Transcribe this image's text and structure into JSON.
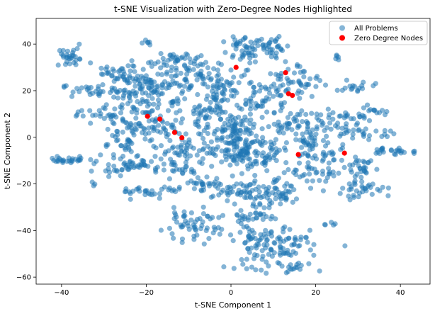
{
  "chart_data": {
    "type": "scatter",
    "title": "t-SNE Visualization with Zero-Degree Nodes Highlighted",
    "xlabel": "t-SNE Component 1",
    "ylabel": "t-SNE Component 2",
    "xlim": [
      -46,
      47
    ],
    "ylim": [
      -63,
      51
    ],
    "xticks": [
      -40,
      -20,
      0,
      20,
      40
    ],
    "yticks": [
      -60,
      -40,
      -20,
      0,
      20,
      40
    ],
    "grid": false,
    "legend_position": "top-right",
    "series": [
      {
        "name": "All Problems",
        "color": "#1f77b4",
        "alpha": 0.55,
        "marker": "circle",
        "note_clusters": [
          {
            "cx": -38,
            "cy": 34,
            "sx": 2.2,
            "sy": 2.0,
            "n": 30
          },
          {
            "cx": -27,
            "cy": 27,
            "sx": 2.0,
            "sy": 1.8,
            "n": 25
          },
          {
            "cx": -32,
            "cy": 20,
            "sx": 4.0,
            "sy": 1.5,
            "n": 30
          },
          {
            "cx": -20,
            "cy": 40,
            "sx": 0.8,
            "sy": 0.8,
            "n": 6
          },
          {
            "cx": -19,
            "cy": 22,
            "sx": 4.5,
            "sy": 5.5,
            "n": 140
          },
          {
            "cx": -13,
            "cy": 33,
            "sx": 3.0,
            "sy": 2.0,
            "n": 35
          },
          {
            "cx": -9,
            "cy": 26,
            "sx": 2.5,
            "sy": 3.0,
            "n": 30
          },
          {
            "cx": -29,
            "cy": 10,
            "sx": 3.0,
            "sy": 2.0,
            "n": 25
          },
          {
            "cx": -25,
            "cy": 4,
            "sx": 2.5,
            "sy": 2.0,
            "n": 20
          },
          {
            "cx": -18,
            "cy": 6,
            "sx": 4.0,
            "sy": 4.0,
            "n": 60
          },
          {
            "cx": -26,
            "cy": -3,
            "sx": 2.5,
            "sy": 2.0,
            "n": 25
          },
          {
            "cx": -40,
            "cy": -10,
            "sx": 2.5,
            "sy": 0.6,
            "n": 18
          },
          {
            "cx": -36,
            "cy": 10,
            "sx": 0.8,
            "sy": 0.8,
            "n": 5
          },
          {
            "cx": -37,
            "cy": -10,
            "sx": 1.5,
            "sy": 1.2,
            "n": 10
          },
          {
            "cx": -24,
            "cy": -12,
            "sx": 4.0,
            "sy": 2.0,
            "n": 55
          },
          {
            "cx": -19,
            "cy": -23,
            "sx": 4.0,
            "sy": 1.2,
            "n": 30
          },
          {
            "cx": -32,
            "cy": -20,
            "sx": 0.5,
            "sy": 0.5,
            "n": 3
          },
          {
            "cx": -11,
            "cy": -5,
            "sx": 3.0,
            "sy": 3.5,
            "n": 45
          },
          {
            "cx": -12,
            "cy": -14,
            "sx": 2.5,
            "sy": 1.5,
            "n": 20
          },
          {
            "cx": -7,
            "cy": -21,
            "sx": 3.0,
            "sy": 2.0,
            "n": 30
          },
          {
            "cx": -10,
            "cy": -38,
            "sx": 3.5,
            "sy": 3.0,
            "n": 55
          },
          {
            "cx": -6,
            "cy": 10,
            "sx": 2.0,
            "sy": 3.0,
            "n": 25
          },
          {
            "cx": -2,
            "cy": 20,
            "sx": 3.5,
            "sy": 5.0,
            "n": 80
          },
          {
            "cx": 3,
            "cy": 38,
            "sx": 2.5,
            "sy": 3.5,
            "n": 45
          },
          {
            "cx": 10,
            "cy": 39,
            "sx": 2.0,
            "sy": 2.5,
            "n": 35
          },
          {
            "cx": 0,
            "cy": 5,
            "sx": 3.5,
            "sy": 4.0,
            "n": 70
          },
          {
            "cx": 2,
            "cy": -5,
            "sx": 4.0,
            "sy": 5.0,
            "n": 110
          },
          {
            "cx": 8,
            "cy": -8,
            "sx": 3.0,
            "sy": 3.0,
            "n": 45
          },
          {
            "cx": 8,
            "cy": 17,
            "sx": 3.0,
            "sy": 3.5,
            "n": 50
          },
          {
            "cx": 13,
            "cy": 5,
            "sx": 2.5,
            "sy": 3.0,
            "n": 30
          },
          {
            "cx": 13,
            "cy": 25,
            "sx": 2.0,
            "sy": 3.0,
            "n": 25
          },
          {
            "cx": 18,
            "cy": 22,
            "sx": 2.0,
            "sy": 3.0,
            "n": 20
          },
          {
            "cx": 4,
            "cy": -24,
            "sx": 5.0,
            "sy": 3.0,
            "n": 60
          },
          {
            "cx": 10,
            "cy": -25,
            "sx": 4.0,
            "sy": 3.0,
            "n": 45
          },
          {
            "cx": 5,
            "cy": -34,
            "sx": 3.0,
            "sy": 1.5,
            "n": 25
          },
          {
            "cx": 9,
            "cy": -47,
            "sx": 5.0,
            "sy": 5.0,
            "n": 120
          },
          {
            "cx": 19,
            "cy": -2,
            "sx": 2.5,
            "sy": 4.0,
            "n": 35
          },
          {
            "cx": 22,
            "cy": 7,
            "sx": 3.5,
            "sy": 3.0,
            "n": 40
          },
          {
            "cx": 25,
            "cy": 34,
            "sx": 0.8,
            "sy": 0.8,
            "n": 5
          },
          {
            "cx": 30,
            "cy": 22,
            "sx": 2.5,
            "sy": 1.5,
            "n": 18
          },
          {
            "cx": 31,
            "cy": 10,
            "sx": 3.0,
            "sy": 1.5,
            "n": 20
          },
          {
            "cx": 34,
            "cy": 12,
            "sx": 0.8,
            "sy": 0.8,
            "n": 5
          },
          {
            "cx": 32,
            "cy": 2,
            "sx": 3.5,
            "sy": 1.5,
            "n": 25
          },
          {
            "cx": 38,
            "cy": -6,
            "sx": 4.0,
            "sy": 0.8,
            "n": 25
          },
          {
            "cx": 22,
            "cy": -8,
            "sx": 3.0,
            "sy": 2.0,
            "n": 25
          },
          {
            "cx": 20,
            "cy": -16,
            "sx": 3.5,
            "sy": 2.0,
            "n": 30
          },
          {
            "cx": 30,
            "cy": -13,
            "sx": 3.0,
            "sy": 2.0,
            "n": 30
          },
          {
            "cx": 31,
            "cy": -22,
            "sx": 3.5,
            "sy": 2.0,
            "n": 35
          },
          {
            "cx": 23,
            "cy": -37,
            "sx": 1.0,
            "sy": 0.6,
            "n": 5
          },
          {
            "cx": 16,
            "cy": -43,
            "sx": 0.8,
            "sy": 0.8,
            "n": 4
          },
          {
            "cx": 15,
            "cy": -56,
            "sx": 1.5,
            "sy": 1.5,
            "n": 12
          }
        ]
      },
      {
        "name": "Zero Degree Nodes",
        "color": "#ff0000",
        "alpha": 1.0,
        "marker": "circle",
        "points": [
          [
            1.2,
            30.0
          ],
          [
            12.9,
            27.7
          ],
          [
            13.6,
            18.7
          ],
          [
            14.5,
            18.0
          ],
          [
            -19.7,
            9.0
          ],
          [
            -16.8,
            7.8
          ],
          [
            -13.3,
            2.1
          ],
          [
            -11.6,
            -0.2
          ],
          [
            15.9,
            -7.4
          ],
          [
            26.8,
            -6.8
          ]
        ]
      }
    ]
  }
}
